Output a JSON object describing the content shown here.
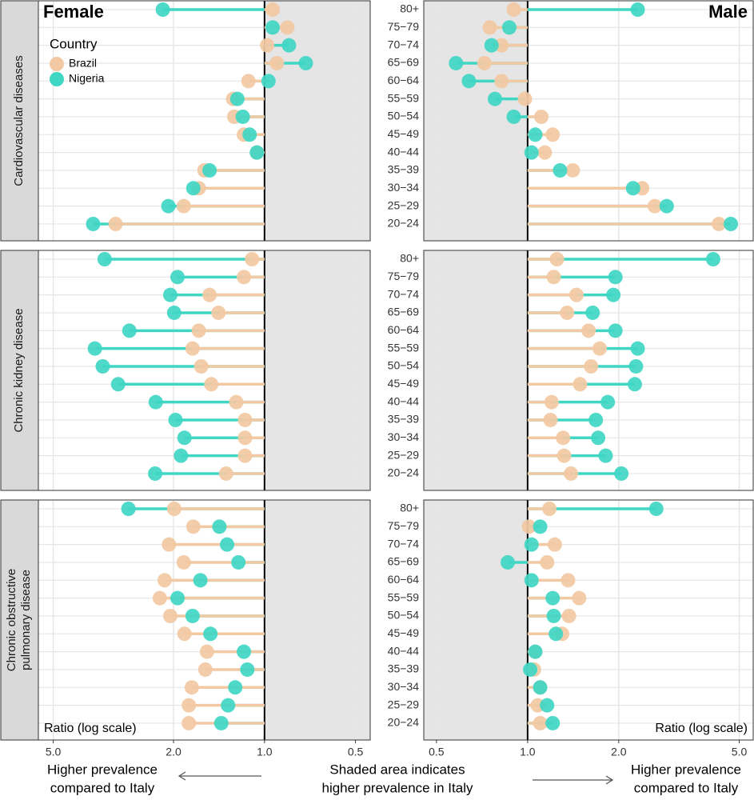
{
  "chart_data": [
    {
      "type": "lollipop",
      "title": "Female",
      "xlabel": "Ratio (log scale)",
      "log_scale": true,
      "baseline": 1,
      "shade": "below_baseline",
      "xlim": [
        5.6,
        0.447
      ],
      "xticks": [
        {
          "value": 5,
          "label": "5.0"
        },
        {
          "value": 2,
          "label": "2.0"
        },
        {
          "value": 1,
          "label": "1.0"
        },
        {
          "value": 0.5,
          "label": "0.5"
        }
      ],
      "panels": [
        {
          "values": [
            [
              0.94,
              0.84,
              0.98,
              0.91,
              1.13,
              1.27,
              1.26,
              1.17,
              1.06,
              1.58,
              1.65,
              1.85,
              3.11
            ],
            [
              2.17,
              0.94,
              0.83,
              0.73,
              0.97,
              1.23,
              1.18,
              1.12,
              1.06,
              1.52,
              1.72,
              2.08,
              3.69
            ]
          ]
        },
        {
          "values": [
            [
              1.1,
              1.17,
              1.52,
              1.42,
              1.65,
              1.73,
              1.62,
              1.5,
              1.24,
              1.16,
              1.16,
              1.16,
              1.34
            ],
            [
              3.38,
              1.94,
              2.05,
              1.99,
              2.8,
              3.64,
              3.43,
              3.05,
              2.29,
              1.97,
              1.84,
              1.89,
              2.3
            ]
          ]
        },
        {
          "values": [
            [
              1.99,
              1.72,
              2.07,
              1.85,
              2.14,
              2.22,
              2.05,
              1.84,
              1.55,
              1.57,
              1.74,
              1.78,
              1.78
            ],
            [
              2.82,
              1.41,
              1.33,
              1.22,
              1.63,
              1.94,
              1.73,
              1.51,
              1.17,
              1.14,
              1.25,
              1.32,
              1.39
            ]
          ]
        }
      ]
    },
    {
      "type": "lollipop",
      "title": "Male",
      "xlabel": "Ratio (log scale)",
      "log_scale": true,
      "baseline": 1,
      "shade": "below_baseline",
      "xlim": [
        0.454,
        5.56
      ],
      "xticks": [
        {
          "value": 0.5,
          "label": "0.5"
        },
        {
          "value": 1,
          "label": "1.0"
        },
        {
          "value": 2,
          "label": "2.0"
        },
        {
          "value": 5,
          "label": "5.0"
        }
      ],
      "categories": [
        "80+",
        "75−79",
        "70−74",
        "65−69",
        "60−64",
        "55−59",
        "50−54",
        "45−49",
        "40−44",
        "35−39",
        "30−34",
        "25−29",
        "20−24"
      ],
      "panels": [
        {
          "values": [
            [
              0.9,
              0.75,
              0.82,
              0.72,
              0.82,
              0.98,
              1.11,
              1.21,
              1.14,
              1.41,
              2.39,
              2.63,
              4.28
            ],
            [
              2.31,
              0.87,
              0.76,
              0.58,
              0.64,
              0.78,
              0.9,
              1.06,
              1.03,
              1.28,
              2.23,
              2.88,
              4.69
            ]
          ]
        },
        {
          "values": [
            [
              1.25,
              1.22,
              1.45,
              1.35,
              1.59,
              1.73,
              1.62,
              1.49,
              1.2,
              1.19,
              1.31,
              1.32,
              1.39
            ],
            [
              4.1,
              1.95,
              1.92,
              1.64,
              1.95,
              2.31,
              2.28,
              2.26,
              1.84,
              1.68,
              1.71,
              1.81,
              2.04
            ]
          ]
        },
        {
          "values": [
            [
              1.18,
              1.01,
              1.23,
              1.16,
              1.36,
              1.48,
              1.37,
              1.3,
              1.06,
              1.05,
              1.1,
              1.08,
              1.1
            ],
            [
              2.66,
              1.1,
              1.03,
              0.86,
              1.03,
              1.21,
              1.22,
              1.24,
              1.06,
              1.02,
              1.1,
              1.16,
              1.21
            ]
          ]
        }
      ]
    }
  ],
  "facets": [
    [
      "Cardiovascular diseases"
    ],
    [
      "Chronic kidney disease"
    ],
    [
      "Chronic obstructive",
      "pulmonary disease"
    ]
  ],
  "legend": {
    "title": "Country",
    "position": "top-left",
    "entries": [
      {
        "name": "Brazil",
        "color": "#f2c9a3"
      },
      {
        "name": "Nigeria",
        "color": "#40d6c4"
      }
    ]
  },
  "annotations": {
    "left": [
      "Higher prevalence",
      "compared to Italy"
    ],
    "center": [
      "Shaded area indicates",
      "higher prevalence in Italy"
    ],
    "right": [
      "Higher prevalence",
      "compared to Italy"
    ]
  }
}
